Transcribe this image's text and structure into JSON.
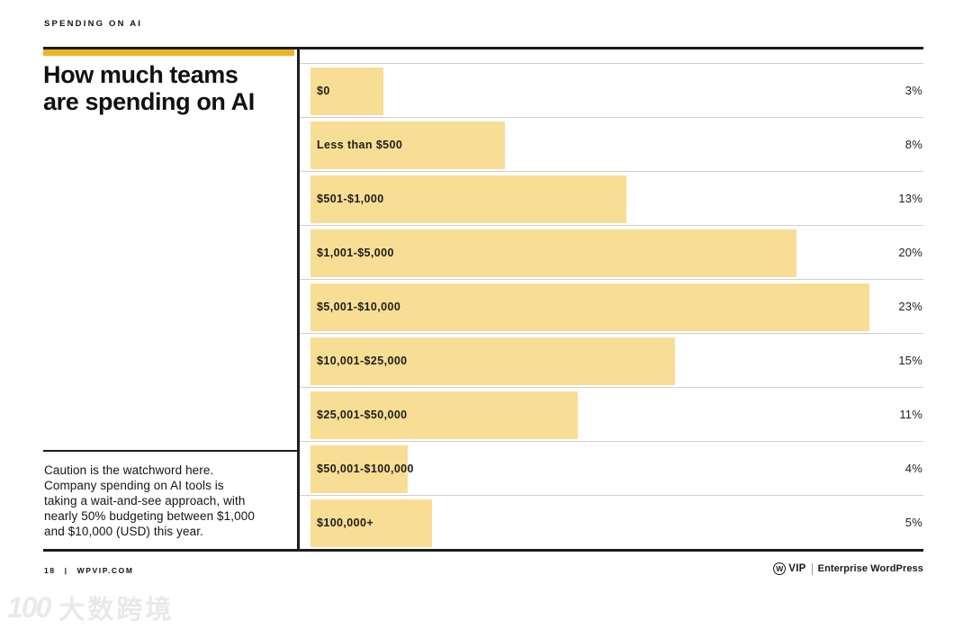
{
  "eyebrow": "SPENDING ON AI",
  "title": "How much teams\nare spending on AI",
  "chart_data": {
    "type": "bar",
    "orientation": "horizontal",
    "title": "How much teams are spending on AI",
    "categories": [
      "$0",
      "Less than $500",
      "$501-$1,000",
      "$1,001-$5,000",
      "$5,001-$10,000",
      "$10,001-$25,000",
      "$25,001-$50,000",
      "$50,001-$100,000",
      "$100,000+"
    ],
    "values": [
      3,
      8,
      13,
      20,
      23,
      15,
      11,
      4,
      5
    ],
    "value_suffix": "%",
    "xlim": [
      0,
      25
    ],
    "grid": false,
    "bar_color": "#f8de94"
  },
  "caption": "Caution is the watchword here.\nCompany spending on AI tools is\ntaking a wait-and-see approach, with\nnearly 50% budgeting between $1,000\nand $10,000 (USD) this year.",
  "footer": {
    "page_number": "18",
    "divider": "|",
    "site": "WPVIP.COM",
    "wp_glyph": "W",
    "vip_label": "VIP",
    "enterprise_label": "Enterprise WordPress"
  },
  "watermark": {
    "logo_text": "100",
    "text": "大数跨境"
  },
  "colors": {
    "accent_gold": "#ecb622",
    "bar_yellow": "#f8de94",
    "ink": "#1c1c1c",
    "separator": "#cfcfcf",
    "watermark": "#e9e9e9"
  }
}
